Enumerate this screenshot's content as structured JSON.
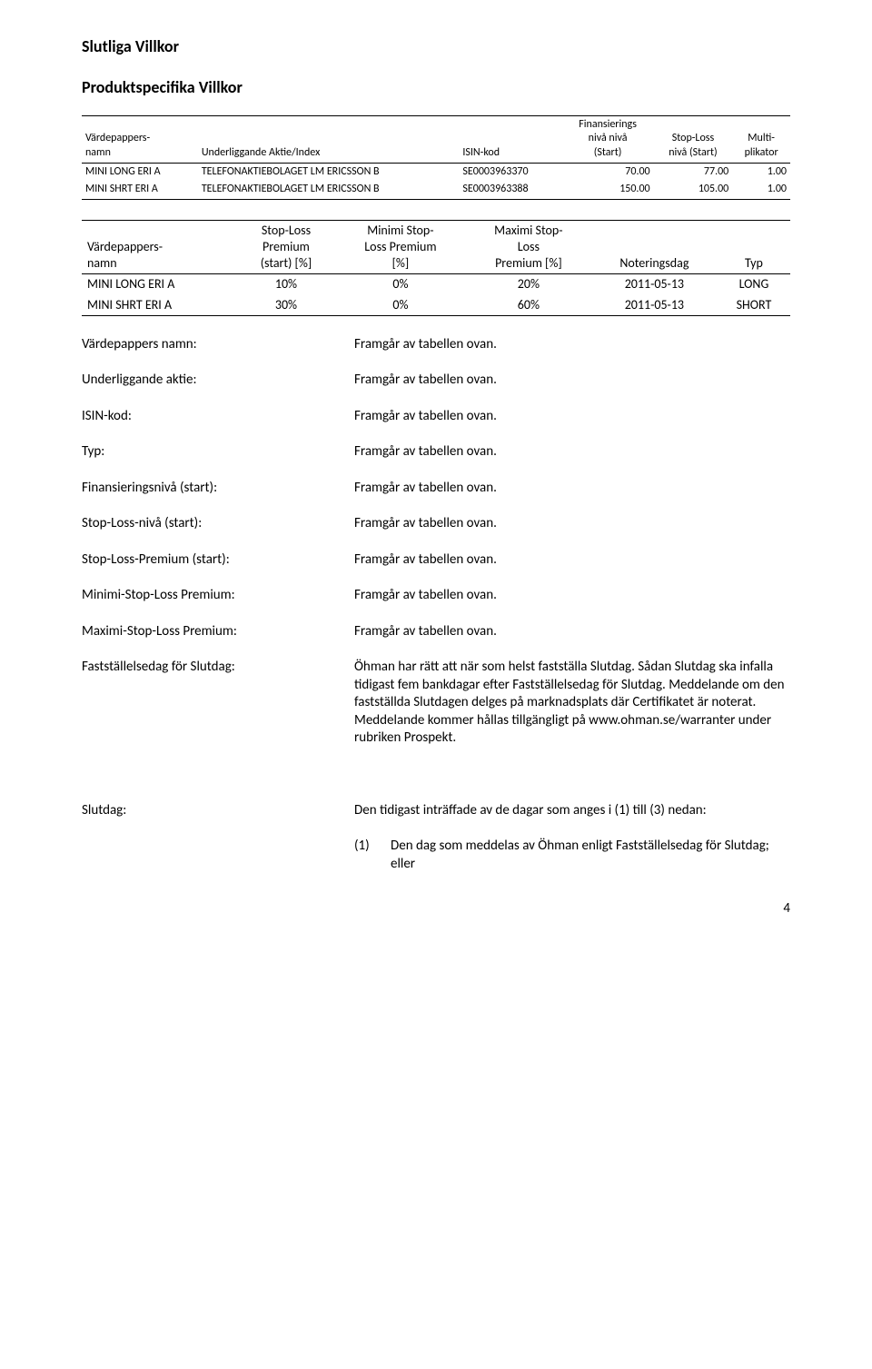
{
  "headings": {
    "h1": "Slutliga Villkor",
    "h2": "Produktspecifika Villkor"
  },
  "table1": {
    "headers": {
      "col1a": "Värdepappers-",
      "col1b": "namn",
      "col2": "Underliggande Aktie/Index",
      "col3": "ISIN-kod",
      "col4a": "Finansierings",
      "col4b": "nivå nivå",
      "col4c": "(Start)",
      "col5a": "Stop-Loss",
      "col5b": "nivå (Start)",
      "col6a": "Multi-",
      "col6b": "plikator"
    },
    "rows": [
      {
        "name": "MINI LONG ERI A",
        "underlying": "TELEFONAKTIEBOLAGET LM ERICSSON B",
        "isin": "SE0003963370",
        "fin": "70.00",
        "sl": "77.00",
        "mult": "1.00"
      },
      {
        "name": "MINI SHRT ERI A",
        "underlying": "TELEFONAKTIEBOLAGET LM ERICSSON B",
        "isin": "SE0003963388",
        "fin": "150.00",
        "sl": "105.00",
        "mult": "1.00"
      }
    ]
  },
  "table2": {
    "headers": {
      "c1a": "Värdepappers-",
      "c1b": "namn",
      "c2a": "Stop-Loss",
      "c2b": "Premium",
      "c2c": "(start) [%]",
      "c3a": "Minimi Stop-",
      "c3b": "Loss Premium",
      "c3c": "[%]",
      "c4a": "Maximi Stop-",
      "c4b": "Loss",
      "c4c": "Premium [%]",
      "c5": "Noteringsdag",
      "c6": "Typ"
    },
    "rows": [
      {
        "name": "MINI LONG ERI A",
        "slp": "10%",
        "min": "0%",
        "max": "20%",
        "date": "2011-05-13",
        "typ": "LONG"
      },
      {
        "name": "MINI SHRT ERI A",
        "slp": "30%",
        "min": "0%",
        "max": "60%",
        "date": "2011-05-13",
        "typ": "SHORT"
      }
    ]
  },
  "defs": [
    {
      "label": "Värdepappers namn:",
      "value": "Framgår av tabellen ovan."
    },
    {
      "label": "Underliggande aktie:",
      "value": "Framgår av tabellen ovan."
    },
    {
      "label": "ISIN-kod:",
      "value": "Framgår av tabellen ovan."
    },
    {
      "label": "Typ:",
      "value": "Framgår av tabellen ovan."
    },
    {
      "label": "Finansieringsnivå (start):",
      "value": "Framgår av tabellen ovan."
    },
    {
      "label": "Stop-Loss-nivå (start):",
      "value": "Framgår av tabellen ovan."
    },
    {
      "label": "Stop-Loss-Premium (start):",
      "value": "Framgår av tabellen ovan."
    },
    {
      "label": "Minimi-Stop-Loss Premium:",
      "value": "Framgår av tabellen ovan."
    },
    {
      "label": "Maximi-Stop-Loss Premium:",
      "value": "Framgår av tabellen ovan."
    }
  ],
  "faststallelse": {
    "label": "Fastställelsedag för Slutdag:",
    "value": "Öhman har rätt att när som helst fastställa Slutdag. Sådan Slutdag ska infalla tidigast fem bankdagar efter Fastställelsedag för Slutdag. Meddelande om den fastställda Slutdagen delges på marknadsplats där Certifikatet är noterat. Meddelande kommer hållas tillgängligt på www.ohman.se/warranter under rubriken Prospekt."
  },
  "slutdag": {
    "label": "Slutdag:",
    "intro": "Den tidigast inträffade av de dagar som anges i (1) till (3) nedan:",
    "item_num": "(1)",
    "item_text": "Den dag som meddelas av Öhman enligt Fastställelsedag för Slutdag; eller"
  },
  "page_number": "4"
}
